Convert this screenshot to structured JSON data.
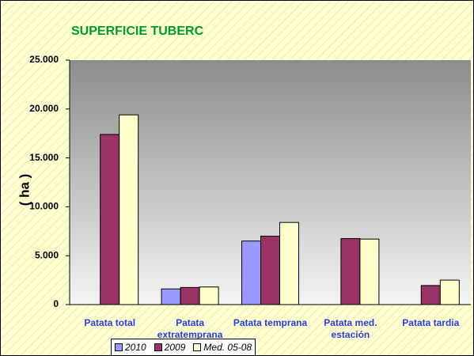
{
  "chart_data": {
    "type": "bar",
    "title": "SUPERFICIE TUBERC",
    "y_label": "( ha )",
    "categories": [
      "Patata total",
      "Patata extratemprana",
      "Patata temprana",
      "Patata med. estación",
      "Patata tardia"
    ],
    "series": [
      {
        "name": "2010",
        "color": "#9999ff",
        "values": [
          null,
          1600,
          6500,
          null,
          null
        ]
      },
      {
        "name": "2009",
        "color": "#993366",
        "values": [
          17400,
          1750,
          7000,
          6750,
          1950
        ]
      },
      {
        "name": "Med. 05-08",
        "color": "#ffffcc",
        "values": [
          19400,
          1800,
          8400,
          6700,
          2500
        ]
      }
    ],
    "ylim": [
      0,
      25000
    ],
    "yticks": [
      0,
      {
        "value": 5000,
        "label": "5.000"
      },
      {
        "value": 10000,
        "label": "10.000"
      },
      {
        "value": 15000,
        "label": "15.000"
      },
      {
        "value": 20000,
        "label": "20.000"
      },
      {
        "value": 25000,
        "label": "25.000"
      }
    ],
    "grid": false,
    "legend": "bottom"
  }
}
